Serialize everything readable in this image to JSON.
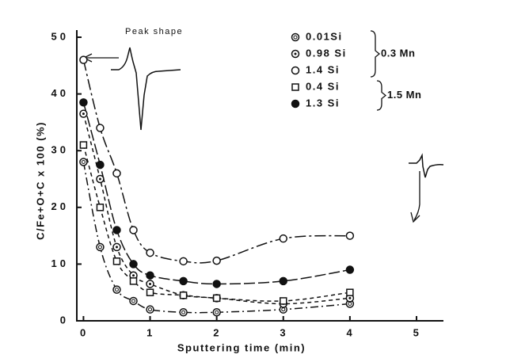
{
  "chart_data": {
    "type": "line",
    "annotations": [
      "Peak shape"
    ],
    "legend_groups": [
      {
        "label": "0.3 Mn",
        "series": [
          0,
          1,
          2
        ]
      },
      {
        "label": "1.5 Mn",
        "series": [
          3,
          4
        ]
      }
    ],
    "x_label": "Sputtering time (min)",
    "y_label": "C/Fe+O+C x 100 (%)",
    "x": [
      0,
      0.25,
      0.5,
      0.75,
      1,
      1.5,
      2,
      3,
      4
    ],
    "series": [
      {
        "name": "0.01Si",
        "marker": "dotted-circle",
        "dash": "10 4 2 4",
        "color": "#111",
        "values": [
          28,
          13,
          5.5,
          3.5,
          2,
          1.5,
          1.5,
          2,
          3
        ]
      },
      {
        "name": "0.98 Si",
        "marker": "dot-circle",
        "dash": "5 4",
        "color": "#111",
        "values": [
          36.5,
          25,
          13,
          8,
          6.5,
          4.5,
          4,
          3,
          4
        ]
      },
      {
        "name": "1.4 Si",
        "marker": "open-circle",
        "dash": "14 4 3 4",
        "color": "#111",
        "values": [
          46,
          34,
          26,
          16,
          12,
          10.5,
          10.6,
          14.5,
          15
        ]
      },
      {
        "name": "0.4 Si",
        "marker": "open-square",
        "dash": "5 4",
        "color": "#111",
        "values": [
          31,
          20,
          10.5,
          7,
          5,
          4.5,
          4,
          3.5,
          5
        ]
      },
      {
        "name": "1.3 Si",
        "marker": "filled-circle",
        "dash": "14 4",
        "color": "#111",
        "values": [
          38.5,
          27.5,
          16,
          10,
          8,
          7,
          6.5,
          7,
          9
        ]
      }
    ],
    "xlim": [
      -0.1,
      5
    ],
    "xticks": [
      0,
      1,
      2,
      3,
      4,
      5
    ],
    "ylim": [
      0,
      50
    ],
    "yticks": [
      0,
      10,
      20,
      30,
      40,
      50
    ]
  }
}
